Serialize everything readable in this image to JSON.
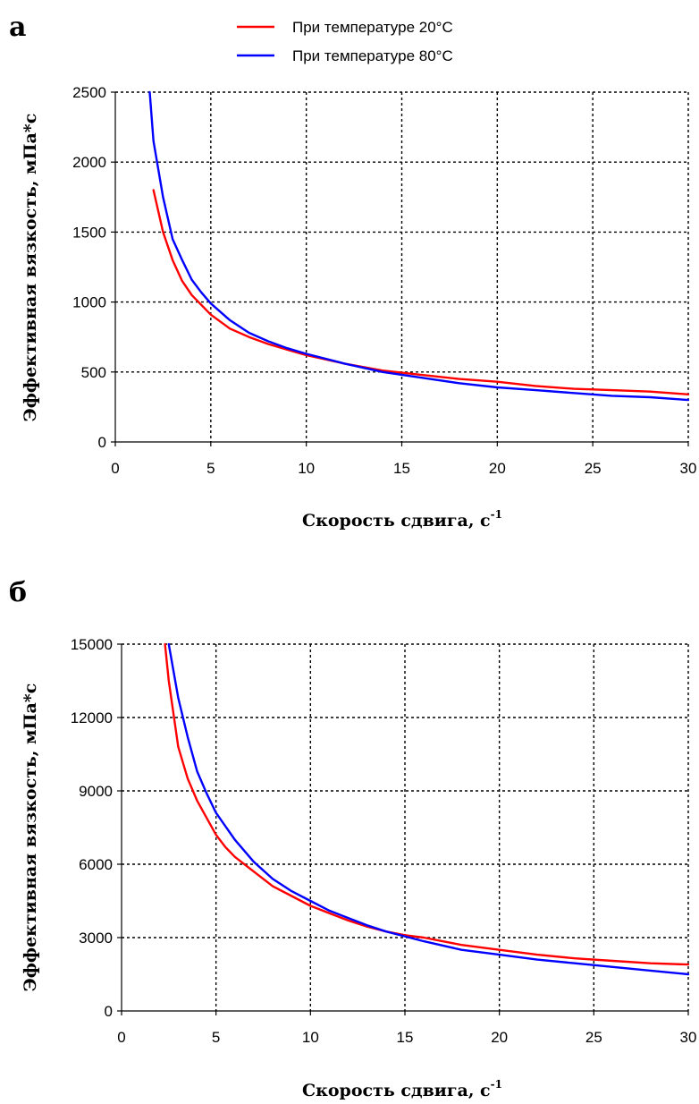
{
  "legend": [
    {
      "name": "При температуре  20°С",
      "color": "#ff0000"
    },
    {
      "name": "При температуре  80°С",
      "color": "#0000ff"
    }
  ],
  "chart_data": [
    {
      "type": "line",
      "panel_label": "а",
      "xlabel": "Скорость сдвига, с",
      "xlabel_sup": "-1",
      "ylabel": "Эффективная вязкость, мПа*с",
      "xlim": [
        0,
        30
      ],
      "ylim": [
        0,
        2500
      ],
      "xticks": [
        "0",
        "5",
        "10",
        "15",
        "20",
        "25",
        "30"
      ],
      "yticks": [
        "0",
        "500",
        "1000",
        "1500",
        "2000",
        "2500"
      ],
      "grid": true,
      "legend_position": "top",
      "series": [
        {
          "name": "При температуре  20°С",
          "color": "#ff0000",
          "x": [
            2,
            2.5,
            3,
            3.5,
            4,
            4.5,
            5,
            6,
            7,
            8,
            9,
            10,
            12,
            14,
            16,
            18,
            20,
            22,
            24,
            26,
            28,
            30
          ],
          "y": [
            1800,
            1500,
            1300,
            1150,
            1050,
            980,
            910,
            810,
            750,
            700,
            660,
            620,
            560,
            510,
            480,
            450,
            430,
            400,
            380,
            370,
            360,
            340
          ]
        },
        {
          "name": "При температуре  80°С",
          "color": "#0000ff",
          "x": [
            1.8,
            2,
            2.5,
            3,
            3.5,
            4,
            4.5,
            5,
            6,
            7,
            8,
            9,
            10,
            12,
            14,
            16,
            18,
            20,
            22,
            24,
            26,
            28,
            30
          ],
          "y": [
            2500,
            2150,
            1750,
            1450,
            1300,
            1160,
            1070,
            990,
            870,
            780,
            720,
            670,
            630,
            560,
            500,
            460,
            420,
            390,
            370,
            350,
            330,
            320,
            300
          ]
        }
      ]
    },
    {
      "type": "line",
      "panel_label": "б",
      "xlabel": "Скорость сдвига, с",
      "xlabel_sup": "-1",
      "ylabel": "Эффективная вязкость, мПа*с",
      "xlim": [
        0,
        30
      ],
      "ylim": [
        0,
        15000
      ],
      "xticks": [
        "0",
        "5",
        "10",
        "15",
        "20",
        "25",
        "30"
      ],
      "yticks": [
        "0",
        "3000",
        "6000",
        "9000",
        "12000",
        "15000"
      ],
      "grid": true,
      "series": [
        {
          "name": "При температуре  20°С",
          "color": "#ff0000",
          "x": [
            2.3,
            2.5,
            3,
            3.5,
            4,
            4.5,
            5,
            5.5,
            6,
            7,
            8,
            9,
            10,
            11,
            12,
            13,
            14,
            15,
            16,
            18,
            20,
            22,
            24,
            26,
            28,
            30
          ],
          "y": [
            15000,
            13500,
            10800,
            9500,
            8600,
            7900,
            7200,
            6700,
            6300,
            5700,
            5100,
            4700,
            4300,
            4000,
            3700,
            3450,
            3250,
            3100,
            3000,
            2700,
            2500,
            2300,
            2150,
            2050,
            1950,
            1900
          ]
        },
        {
          "name": "При температуре  80°С",
          "color": "#0000ff",
          "x": [
            2.5,
            3,
            3.5,
            4,
            4.5,
            5,
            6,
            7,
            8,
            9,
            10,
            11,
            12,
            13,
            14,
            15,
            16,
            18,
            20,
            22,
            24,
            26,
            28,
            30
          ],
          "y": [
            15000,
            12800,
            11200,
            9800,
            8900,
            8100,
            7000,
            6100,
            5400,
            4900,
            4500,
            4100,
            3800,
            3500,
            3250,
            3050,
            2850,
            2500,
            2300,
            2100,
            1950,
            1800,
            1650,
            1500
          ]
        }
      ]
    }
  ]
}
